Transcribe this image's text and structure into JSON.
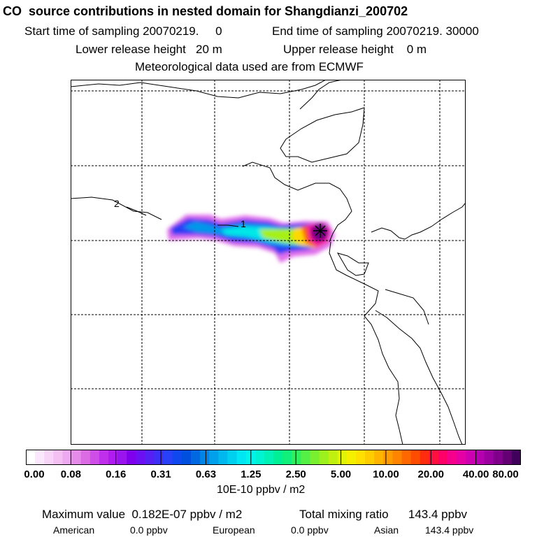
{
  "title": "CO  source contributions in nested domain for Shangdianzi_200702",
  "sampling": {
    "start": "Start time of sampling 20070219.     0",
    "end": "End time of sampling 20070219. 30000"
  },
  "release": {
    "lower": "Lower release height   20 m",
    "upper": "Upper release height    0 m"
  },
  "met": "Meteorological data used are from ECMWF",
  "map": {
    "contour_labels": [
      "1",
      "2"
    ],
    "receptor_marker": "receptor-star-icon"
  },
  "colorbar": {
    "tick_labels": [
      "0.00",
      "0.08",
      "0.16",
      "0.31",
      "0.63",
      "1.25",
      "2.50",
      "5.00",
      "10.00",
      "20.00",
      "40.00",
      "80.00"
    ],
    "colors": [
      "#ffffff",
      "#fce8fc",
      "#f8d4f8",
      "#f4c0f4",
      "#eeaaf0",
      "#e58ce8",
      "#dc6ce4",
      "#d04ee8",
      "#c030ec",
      "#b01cf0",
      "#9a14f0",
      "#8000ee",
      "#6c10f4",
      "#5420f4",
      "#3c30f6",
      "#2840f8",
      "#1048f0",
      "#0050e0",
      "#0068e0",
      "#0084e6",
      "#00a0ea",
      "#00b8ee",
      "#00d0f0",
      "#00e6f2",
      "#00f4ec",
      "#00f4d4",
      "#00f2b4",
      "#00f096",
      "#10f07a",
      "#30f060",
      "#54f046",
      "#78f030",
      "#9cf01c",
      "#c0f010",
      "#e0f408",
      "#f4f000",
      "#ffe000",
      "#ffcc00",
      "#ffb400",
      "#ff9c00",
      "#ff8400",
      "#ff6800",
      "#ff4c00",
      "#ff2c10",
      "#ff1040",
      "#ff0068",
      "#f4008c",
      "#e400a4",
      "#cc00b0",
      "#b400b0",
      "#9c00a0",
      "#80008c",
      "#640074",
      "#40005c"
    ],
    "units": "10E-10 ppbv / m2"
  },
  "summary": {
    "max": "Maximum value  0.182E-07 ppbv / m2",
    "total": "Total mixing ratio      143.4 ppbv"
  },
  "sources": [
    {
      "label": "American",
      "value": "0.0 ppbv"
    },
    {
      "label": "European",
      "value": "0.0 ppbv"
    },
    {
      "label": "Asian",
      "value": "143.4 ppbv"
    }
  ]
}
